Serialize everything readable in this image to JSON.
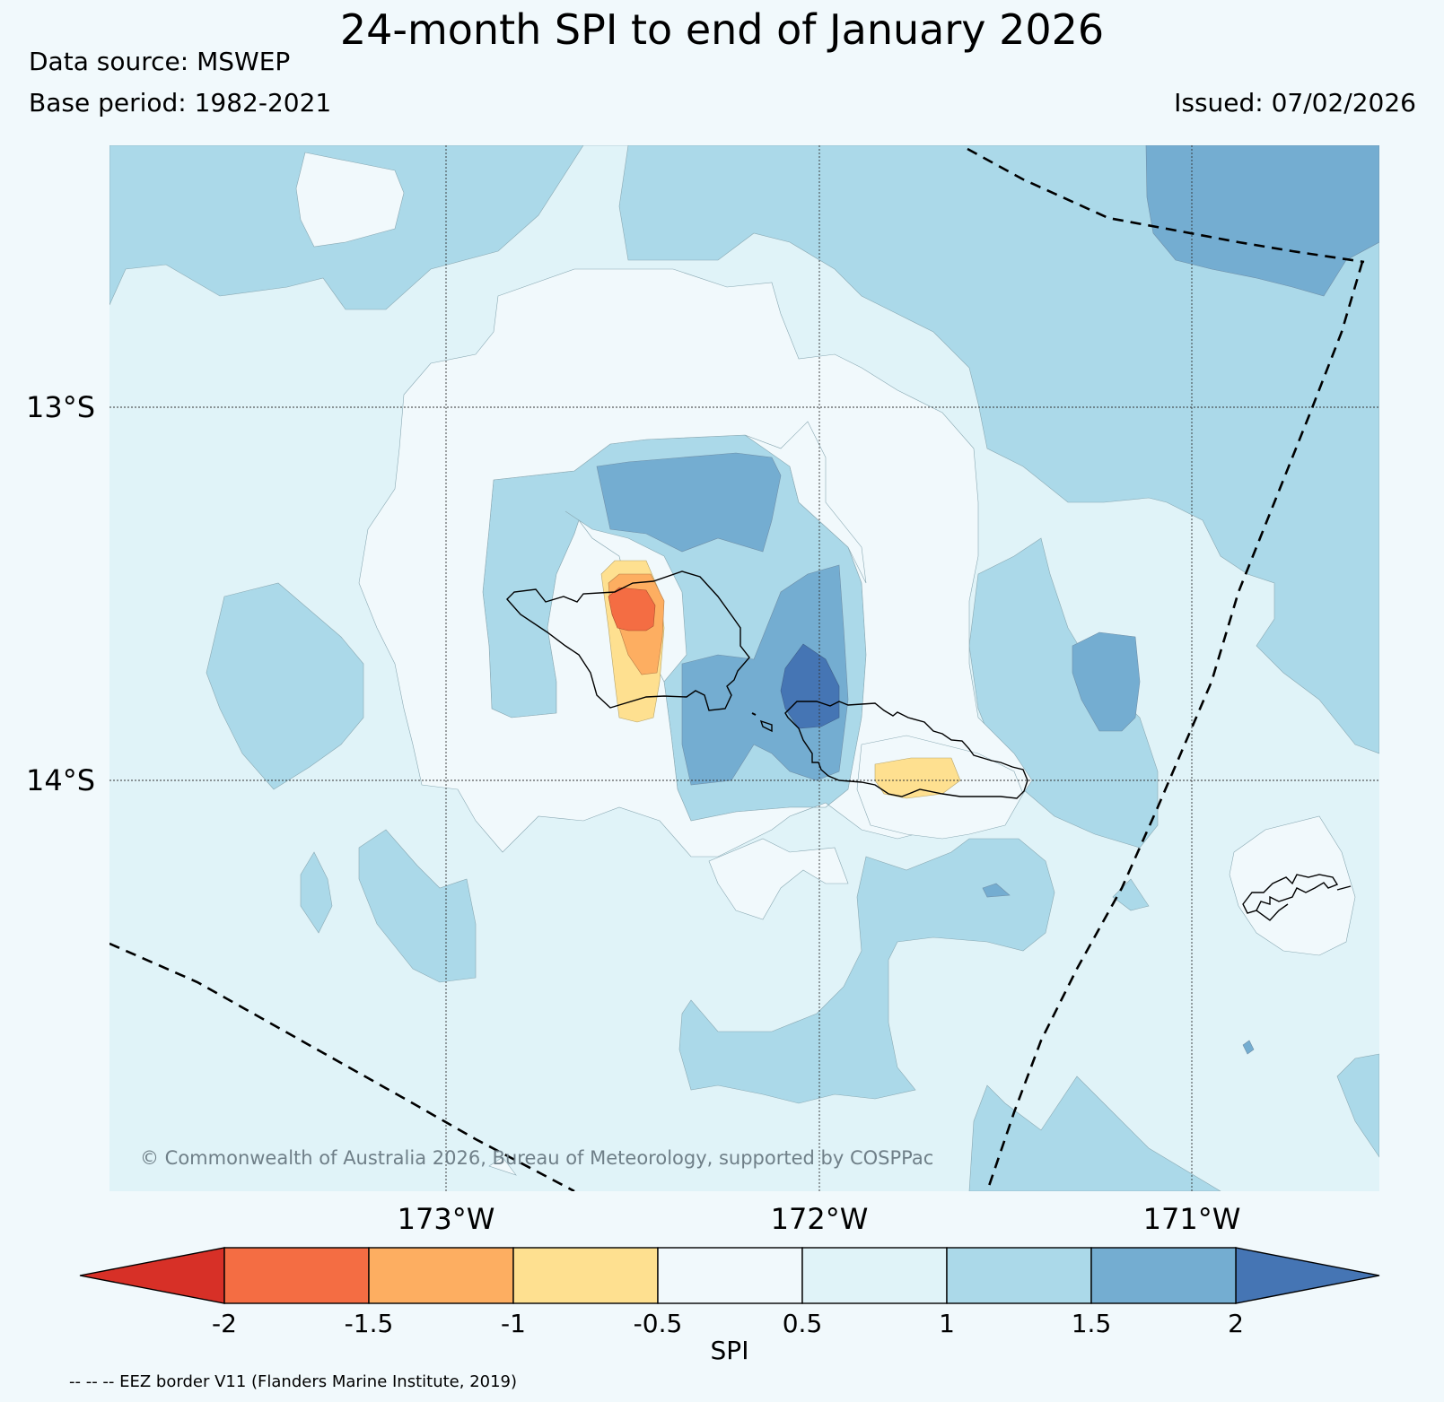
{
  "title": "24-month SPI to end of January 2026",
  "data_source": "Data source: MSWEP",
  "base_period": "Base period: 1982-2021",
  "issued": "Issued: 07/02/2026",
  "copyright": "© Commonwealth of Australia 2026, Bureau of Meteorology, supported by COSPPac",
  "footnote": "-- -- -- EEZ border V11 (Flanders Marine Institute, 2019)",
  "map": {
    "lat_labels": [
      "13°S",
      "14°S"
    ],
    "lon_labels": [
      "173°W",
      "172°W",
      "171°W"
    ]
  },
  "colorbar": {
    "label": "SPI",
    "tick_labels": [
      "-2",
      "-1.5",
      "-1",
      "-0.5",
      "0.5",
      "1",
      "1.5",
      "2"
    ],
    "colors": [
      "#d73027",
      "#f46d43",
      "#fdae61",
      "#fee090",
      "#f1f9fc",
      "#e0f3f8",
      "#abd9e9",
      "#74add1",
      "#4575b4"
    ],
    "boundaries": [
      -2,
      -1.5,
      -1,
      -0.5,
      0.5,
      1,
      1.5,
      2
    ]
  },
  "colors": {
    "background": "#f1f9fc",
    "band_0p5_1": "#e0f3f8",
    "band_1_1p5": "#abd9e9",
    "band_1p5_2": "#74add1",
    "band_gt_2": "#4575b4",
    "band_m0p5_m1": "#fee090",
    "band_m1_m1p5": "#fdae61",
    "band_m1p5_m2": "#f46d43",
    "band_lt_m2": "#d73027",
    "copyright_text": "#6f7f88"
  }
}
